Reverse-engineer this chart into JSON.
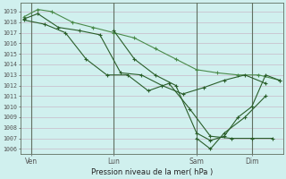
{
  "title": "Pression niveau de la mer( hPa )",
  "ylabel_ticks": [
    1006,
    1007,
    1008,
    1009,
    1010,
    1011,
    1012,
    1013,
    1014,
    1015,
    1016,
    1017,
    1018,
    1019
  ],
  "ylim": [
    1005.5,
    1019.8
  ],
  "xlim": [
    -0.5,
    37.5
  ],
  "x_tick_labels": [
    "Ven",
    "Lun",
    "Sam",
    "Dim"
  ],
  "x_tick_positions": [
    1,
    13,
    25,
    33
  ],
  "day_lines": [
    1,
    13,
    25,
    33
  ],
  "background_color": "#d0f0ee",
  "grid_color_h": "#c8b8c8",
  "grid_color_v": "#c8b8c8",
  "day_line_color": "#607060",
  "line_color_dark": "#2a5e2a",
  "line_color_light": "#3a7a3a",
  "series1": {
    "x": [
      0,
      2,
      4,
      7,
      10,
      13,
      16,
      19,
      22,
      25,
      28,
      31,
      34,
      37
    ],
    "y": [
      1018.5,
      1019.2,
      1019.0,
      1018.0,
      1017.5,
      1017.0,
      1016.5,
      1015.5,
      1014.5,
      1013.5,
      1013.2,
      1013.0,
      1013.0,
      1012.5
    ],
    "color": "#4a8a4a"
  },
  "series2": {
    "x": [
      0,
      2,
      5,
      8,
      11,
      14,
      17,
      20,
      23,
      26,
      29,
      32,
      35
    ],
    "y": [
      1018.3,
      1018.8,
      1017.5,
      1017.2,
      1016.8,
      1013.2,
      1013.0,
      1012.0,
      1011.2,
      1011.8,
      1012.5,
      1013.0,
      1012.2
    ],
    "color": "#2a5e2a"
  },
  "series3": {
    "x": [
      0,
      3,
      6,
      9,
      12,
      15,
      18,
      21,
      24,
      27,
      30,
      33,
      36
    ],
    "y": [
      1018.2,
      1017.8,
      1017.0,
      1014.5,
      1013.0,
      1013.0,
      1011.5,
      1012.2,
      1009.8,
      1007.2,
      1007.0,
      1007.0,
      1007.0
    ],
    "color": "#2a5e2a"
  },
  "series4": {
    "x": [
      13,
      16,
      19,
      22,
      25,
      27,
      29,
      31,
      33,
      35,
      37
    ],
    "y": [
      1017.2,
      1014.5,
      1013.0,
      1012.0,
      1007.5,
      1006.8,
      1007.2,
      1009.0,
      1010.0,
      1013.0,
      1012.5
    ],
    "color": "#2a5e2a"
  },
  "series5": {
    "x": [
      25,
      27,
      29,
      32,
      35
    ],
    "y": [
      1007.0,
      1006.0,
      1007.5,
      1009.0,
      1011.0
    ],
    "color": "#2a5e2a"
  }
}
